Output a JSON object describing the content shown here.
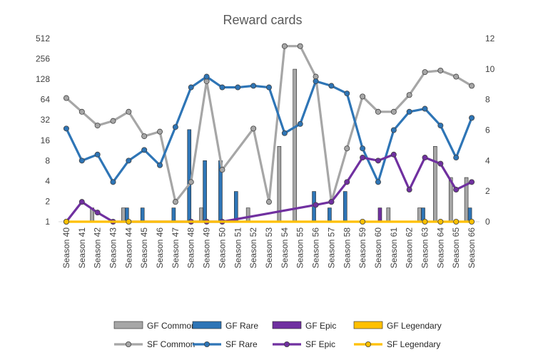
{
  "chart_data": {
    "type": "bar+line",
    "title": "Reward cards",
    "categories": [
      "Season 40",
      "Season 41",
      "Season 42",
      "Season 43",
      "Season 44",
      "Season 45",
      "Season 46",
      "Season 47",
      "Season 48",
      "Season 49",
      "Season 50",
      "Season 51",
      "Season 52",
      "Season 53",
      "Season 54",
      "Season 55",
      "Season 56",
      "Season 57",
      "Season 58",
      "Season 59",
      "Season 60",
      "Season 61",
      "Season 62",
      "Season 63",
      "Season 64",
      "Season 65",
      "Season 66"
    ],
    "left_axis": {
      "scale": "log2",
      "ticks": [
        1,
        2,
        4,
        8,
        16,
        32,
        64,
        128,
        256,
        512
      ]
    },
    "right_axis": {
      "scale": "linear",
      "ticks": [
        0,
        2,
        4,
        6,
        8,
        10,
        12
      ]
    },
    "bar_series": [
      {
        "name": "GF Common",
        "color": "#A6A6A6",
        "values": [
          0,
          0,
          1.6,
          0,
          1.6,
          0,
          0,
          0,
          0,
          1.6,
          0,
          0,
          1.6,
          0,
          13,
          180,
          0,
          0,
          0,
          0,
          0,
          1.6,
          0,
          1.6,
          13,
          4.5,
          4.5
        ]
      },
      {
        "name": "GF Rare",
        "color": "#2E75B6",
        "values": [
          0,
          0,
          0,
          0,
          1.6,
          1.6,
          0,
          1.6,
          23,
          8,
          8,
          2.8,
          0,
          0,
          0,
          0,
          2.8,
          1.6,
          2.8,
          0,
          0,
          0,
          0,
          1.6,
          0,
          0,
          1.6
        ]
      },
      {
        "name": "GF Epic",
        "color": "#7030A0",
        "values": [
          0,
          0,
          0,
          0,
          0,
          0,
          0,
          0,
          0,
          0,
          0,
          0,
          0,
          0,
          0,
          0,
          0,
          0,
          0,
          0,
          1.6,
          0,
          0,
          0,
          0,
          0,
          0
        ]
      },
      {
        "name": "GF Legendary",
        "color": "#FFC000",
        "values": [
          0,
          0,
          0,
          0,
          0,
          0,
          0,
          0,
          0,
          0,
          0,
          0,
          0,
          0,
          0,
          0,
          0,
          0,
          0,
          0,
          0,
          0,
          0,
          0,
          0,
          0,
          0
        ]
      }
    ],
    "line_series": [
      {
        "name": "SF Common",
        "color": "#A6A6A6",
        "values": [
          8.1,
          7.2,
          6.3,
          6.6,
          7.2,
          5.6,
          5.9,
          1.3,
          2.6,
          9.2,
          3.4,
          null,
          6.1,
          1.3,
          11.5,
          11.5,
          9.5,
          1.3,
          4.8,
          8.2,
          7.2,
          7.2,
          8.3,
          9.8,
          9.9,
          9.5,
          8.9
        ]
      },
      {
        "name": "SF Rare",
        "color": "#2E75B6",
        "values": [
          6.1,
          4,
          4.4,
          2.6,
          4,
          4.7,
          3.7,
          6.2,
          8.8,
          9.5,
          8.8,
          8.8,
          8.9,
          8.8,
          5.8,
          6.4,
          9.2,
          8.9,
          8.4,
          4.8,
          2.6,
          6,
          7.2,
          7.4,
          6.3,
          4.2,
          6.8
        ]
      },
      {
        "name": "SF Epic",
        "color": "#7030A0",
        "values": [
          0,
          1.3,
          0.6,
          0,
          null,
          null,
          null,
          null,
          0,
          0,
          0,
          null,
          null,
          null,
          null,
          null,
          1.1,
          1.3,
          2.6,
          4.2,
          4,
          4.4,
          2.1,
          4.2,
          3.8,
          2.1,
          2.6
        ]
      },
      {
        "name": "SF Legendary",
        "color": "#FFC000",
        "values": [
          0,
          null,
          null,
          null,
          0,
          null,
          null,
          null,
          null,
          null,
          null,
          null,
          null,
          null,
          null,
          null,
          null,
          null,
          null,
          0,
          null,
          null,
          null,
          0,
          0,
          0,
          0
        ]
      }
    ],
    "legend_position": "bottom",
    "grid": false
  }
}
